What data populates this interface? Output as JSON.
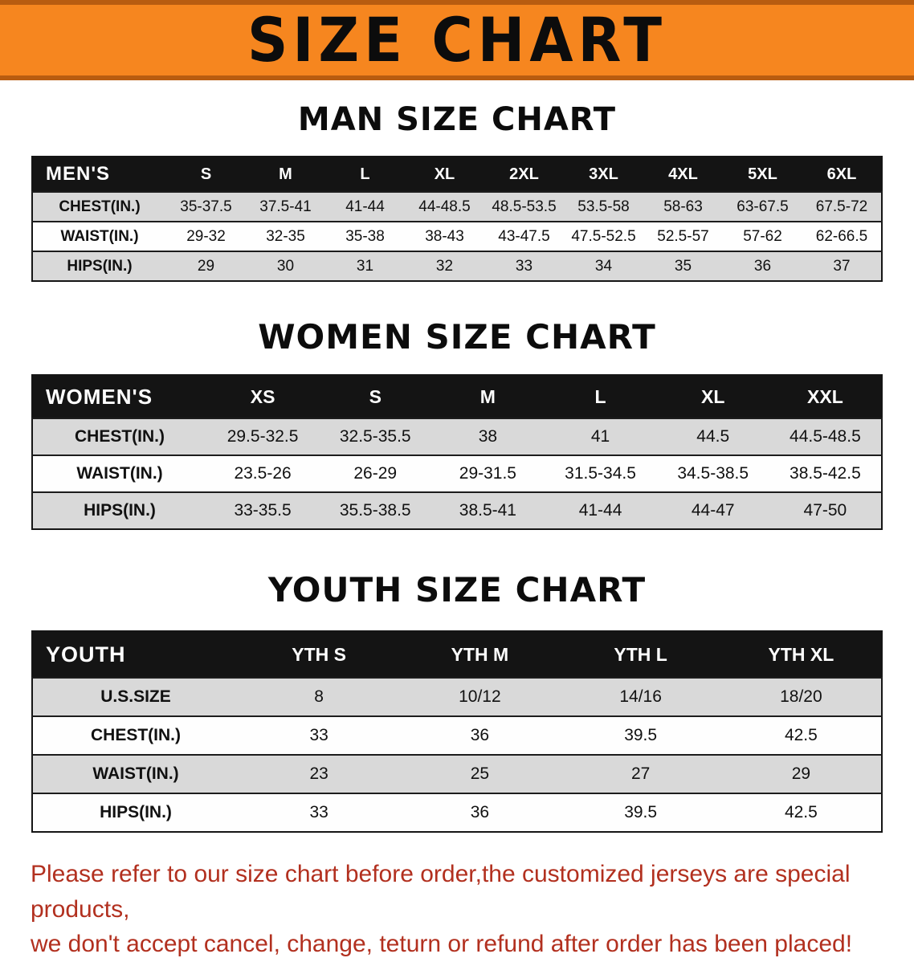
{
  "banner": {
    "title": "SIZE CHART"
  },
  "sections": {
    "men": {
      "heading": "MAN SIZE CHART",
      "table": {
        "header": [
          "MEN'S",
          "S",
          "M",
          "L",
          "XL",
          "2XL",
          "3XL",
          "4XL",
          "5XL",
          "6XL"
        ],
        "rows": [
          [
            "CHEST(IN.)",
            "35-37.5",
            "37.5-41",
            "41-44",
            "44-48.5",
            "48.5-53.5",
            "53.5-58",
            "58-63",
            "63-67.5",
            "67.5-72"
          ],
          [
            "WAIST(IN.)",
            "29-32",
            "32-35",
            "35-38",
            "38-43",
            "43-47.5",
            "47.5-52.5",
            "52.5-57",
            "57-62",
            "62-66.5"
          ],
          [
            "HIPS(IN.)",
            "29",
            "30",
            "31",
            "32",
            "33",
            "34",
            "35",
            "36",
            "37"
          ]
        ]
      }
    },
    "women": {
      "heading": "WOMEN SIZE CHART",
      "table": {
        "header": [
          "WOMEN'S",
          "XS",
          "S",
          "M",
          "L",
          "XL",
          "XXL"
        ],
        "rows": [
          [
            "CHEST(IN.)",
            "29.5-32.5",
            "32.5-35.5",
            "38",
            "41",
            "44.5",
            "44.5-48.5"
          ],
          [
            "WAIST(IN.)",
            "23.5-26",
            "26-29",
            "29-31.5",
            "31.5-34.5",
            "34.5-38.5",
            "38.5-42.5"
          ],
          [
            "HIPS(IN.)",
            "33-35.5",
            "35.5-38.5",
            "38.5-41",
            "41-44",
            "44-47",
            "47-50"
          ]
        ]
      }
    },
    "youth": {
      "heading": "YOUTH SIZE CHART",
      "table": {
        "header": [
          "YOUTH",
          "YTH S",
          "YTH M",
          "YTH L",
          "YTH XL"
        ],
        "rows": [
          [
            "U.S.SIZE",
            "8",
            "10/12",
            "14/16",
            "18/20"
          ],
          [
            "CHEST(IN.)",
            "33",
            "36",
            "39.5",
            "42.5"
          ],
          [
            "WAIST(IN.)",
            "23",
            "25",
            "27",
            "29"
          ],
          [
            "HIPS(IN.)",
            "33",
            "36",
            "39.5",
            "42.5"
          ]
        ]
      }
    }
  },
  "disclaimer": {
    "line1": "Please refer to our size chart before order,the customized jerseys are special products,",
    "line2": "we don't accept cancel, change, teturn or refund after order has been placed!"
  },
  "colors": {
    "banner_bg": "#f6861f",
    "banner_border": "#b85c10",
    "table_header_bg": "#141414",
    "row_stripe_bg": "#d9d9d9",
    "disclaimer_text": "#b2301f"
  }
}
